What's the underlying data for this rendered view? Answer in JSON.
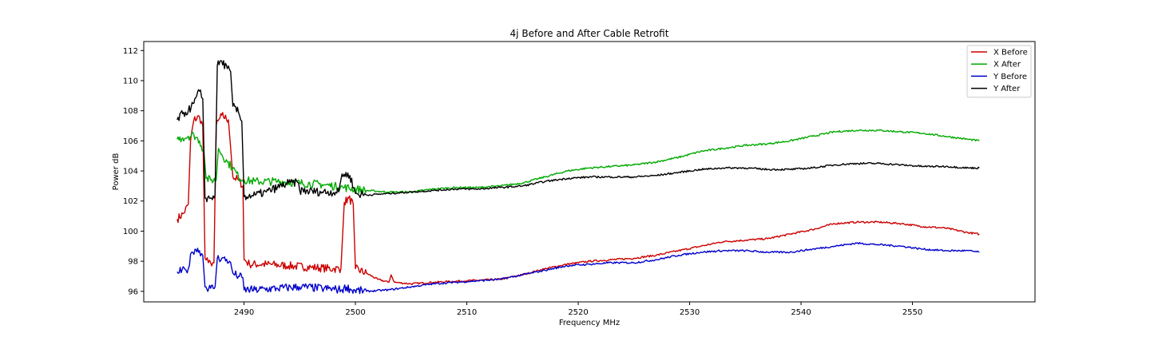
{
  "chart_data": {
    "type": "line",
    "title": "4j Before and After Cable Retrofit",
    "xlabel": "Frequency MHz",
    "ylabel": "Power dB",
    "xlim": [
      2481,
      2561
    ],
    "ylim": [
      95.3,
      112.6
    ],
    "xticks": [
      2490,
      2500,
      2510,
      2520,
      2530,
      2540,
      2550
    ],
    "yticks": [
      96,
      98,
      100,
      102,
      104,
      106,
      108,
      110,
      112
    ],
    "grid": false,
    "legend": "top-right",
    "series": [
      {
        "name": "X Before",
        "color": "#cc0000",
        "points": [
          [
            2484.0,
            100.8
          ],
          [
            2484.6,
            101.2
          ],
          [
            2485.0,
            101.8
          ],
          [
            2485.2,
            106.0
          ],
          [
            2485.5,
            107.4
          ],
          [
            2486.0,
            107.6
          ],
          [
            2486.3,
            107.0
          ],
          [
            2486.5,
            98.2
          ],
          [
            2486.8,
            97.9
          ],
          [
            2487.0,
            97.9
          ],
          [
            2487.3,
            97.9
          ],
          [
            2487.5,
            107.0
          ],
          [
            2488.0,
            107.7
          ],
          [
            2488.6,
            107.4
          ],
          [
            2489.0,
            103.6
          ],
          [
            2489.5,
            103.4
          ],
          [
            2489.9,
            103.0
          ],
          [
            2490.0,
            98.1
          ],
          [
            2490.5,
            97.8
          ],
          [
            2492.0,
            97.8
          ],
          [
            2494.0,
            97.7
          ],
          [
            2496.0,
            97.6
          ],
          [
            2498.0,
            97.5
          ],
          [
            2498.7,
            97.5
          ],
          [
            2499.0,
            101.9
          ],
          [
            2499.4,
            102.2
          ],
          [
            2499.8,
            101.8
          ],
          [
            2500.0,
            97.5
          ],
          [
            2501.0,
            97.2
          ],
          [
            2502.0,
            96.8
          ],
          [
            2503.0,
            96.6
          ],
          [
            2503.2,
            97.1
          ],
          [
            2503.5,
            96.6
          ],
          [
            2505.0,
            96.5
          ],
          [
            2507.0,
            96.6
          ],
          [
            2510.0,
            96.7
          ],
          [
            2513.0,
            96.8
          ],
          [
            2515.0,
            97.1
          ],
          [
            2517.0,
            97.5
          ],
          [
            2519.0,
            97.8
          ],
          [
            2521.0,
            98.0
          ],
          [
            2523.0,
            98.1
          ],
          [
            2525.0,
            98.2
          ],
          [
            2527.0,
            98.4
          ],
          [
            2529.0,
            98.7
          ],
          [
            2531.0,
            99.0
          ],
          [
            2533.0,
            99.3
          ],
          [
            2535.0,
            99.4
          ],
          [
            2537.0,
            99.5
          ],
          [
            2539.0,
            99.8
          ],
          [
            2541.0,
            100.1
          ],
          [
            2543.0,
            100.5
          ],
          [
            2545.0,
            100.6
          ],
          [
            2547.0,
            100.6
          ],
          [
            2549.0,
            100.5
          ],
          [
            2551.0,
            100.3
          ],
          [
            2553.0,
            100.2
          ],
          [
            2555.0,
            99.9
          ],
          [
            2556.0,
            99.8
          ]
        ]
      },
      {
        "name": "X After",
        "color": "#00aa00",
        "points": [
          [
            2484.0,
            106.1
          ],
          [
            2484.5,
            106.2
          ],
          [
            2485.0,
            106.3
          ],
          [
            2485.5,
            106.4
          ],
          [
            2486.0,
            106.0
          ],
          [
            2486.4,
            105.3
          ],
          [
            2486.6,
            103.5
          ],
          [
            2487.0,
            103.4
          ],
          [
            2487.5,
            103.4
          ],
          [
            2487.7,
            105.5
          ],
          [
            2488.0,
            105.1
          ],
          [
            2488.5,
            104.6
          ],
          [
            2489.0,
            104.2
          ],
          [
            2489.5,
            103.6
          ],
          [
            2490.0,
            103.4
          ],
          [
            2491.0,
            103.3
          ],
          [
            2493.0,
            103.3
          ],
          [
            2495.0,
            103.2
          ],
          [
            2497.0,
            103.1
          ],
          [
            2499.0,
            102.9
          ],
          [
            2501.0,
            102.7
          ],
          [
            2503.0,
            102.6
          ],
          [
            2505.0,
            102.6
          ],
          [
            2507.0,
            102.8
          ],
          [
            2509.0,
            102.9
          ],
          [
            2511.0,
            102.9
          ],
          [
            2513.0,
            103.0
          ],
          [
            2515.0,
            103.2
          ],
          [
            2517.0,
            103.6
          ],
          [
            2519.0,
            104.0
          ],
          [
            2521.0,
            104.2
          ],
          [
            2523.0,
            104.3
          ],
          [
            2525.0,
            104.4
          ],
          [
            2527.0,
            104.6
          ],
          [
            2529.0,
            104.9
          ],
          [
            2531.0,
            105.3
          ],
          [
            2533.0,
            105.5
          ],
          [
            2535.0,
            105.7
          ],
          [
            2537.0,
            105.8
          ],
          [
            2539.0,
            106.0
          ],
          [
            2541.0,
            106.3
          ],
          [
            2543.0,
            106.6
          ],
          [
            2545.0,
            106.7
          ],
          [
            2547.0,
            106.7
          ],
          [
            2549.0,
            106.6
          ],
          [
            2551.0,
            106.5
          ],
          [
            2553.0,
            106.3
          ],
          [
            2555.0,
            106.1
          ],
          [
            2556.0,
            106.0
          ]
        ]
      },
      {
        "name": "Y Before",
        "color": "#0000cc",
        "points": [
          [
            2484.0,
            97.3
          ],
          [
            2484.8,
            97.4
          ],
          [
            2485.0,
            97.5
          ],
          [
            2485.3,
            98.6
          ],
          [
            2485.6,
            98.8
          ],
          [
            2486.0,
            98.7
          ],
          [
            2486.3,
            98.4
          ],
          [
            2486.5,
            96.3
          ],
          [
            2487.0,
            96.2
          ],
          [
            2487.4,
            96.3
          ],
          [
            2487.6,
            98.2
          ],
          [
            2488.0,
            98.2
          ],
          [
            2488.7,
            98.0
          ],
          [
            2489.0,
            97.2
          ],
          [
            2489.5,
            97.0
          ],
          [
            2489.9,
            96.9
          ],
          [
            2490.0,
            96.1
          ],
          [
            2491.0,
            96.1
          ],
          [
            2493.0,
            96.2
          ],
          [
            2495.0,
            96.3
          ],
          [
            2497.0,
            96.2
          ],
          [
            2498.8,
            96.1
          ],
          [
            2499.2,
            96.3
          ],
          [
            2499.6,
            96.1
          ],
          [
            2501.0,
            96.0
          ],
          [
            2503.0,
            96.1
          ],
          [
            2505.0,
            96.3
          ],
          [
            2507.0,
            96.5
          ],
          [
            2509.0,
            96.6
          ],
          [
            2511.0,
            96.7
          ],
          [
            2513.0,
            96.8
          ],
          [
            2515.0,
            97.1
          ],
          [
            2517.0,
            97.4
          ],
          [
            2519.0,
            97.7
          ],
          [
            2521.0,
            97.8
          ],
          [
            2523.0,
            97.9
          ],
          [
            2525.0,
            97.9
          ],
          [
            2527.0,
            98.1
          ],
          [
            2529.0,
            98.4
          ],
          [
            2531.0,
            98.6
          ],
          [
            2533.0,
            98.7
          ],
          [
            2535.0,
            98.7
          ],
          [
            2537.0,
            98.6
          ],
          [
            2539.0,
            98.6
          ],
          [
            2541.0,
            98.8
          ],
          [
            2543.0,
            99.0
          ],
          [
            2545.0,
            99.2
          ],
          [
            2547.0,
            99.1
          ],
          [
            2549.0,
            99.0
          ],
          [
            2551.0,
            98.8
          ],
          [
            2553.0,
            98.7
          ],
          [
            2555.0,
            98.7
          ],
          [
            2556.0,
            98.6
          ]
        ]
      },
      {
        "name": "Y After",
        "color": "#000000",
        "points": [
          [
            2484.0,
            107.4
          ],
          [
            2484.5,
            107.8
          ],
          [
            2485.0,
            108.0
          ],
          [
            2485.5,
            108.5
          ],
          [
            2486.0,
            109.3
          ],
          [
            2486.3,
            108.8
          ],
          [
            2486.5,
            102.2
          ],
          [
            2487.0,
            102.2
          ],
          [
            2487.4,
            102.4
          ],
          [
            2487.6,
            111.0
          ],
          [
            2488.0,
            111.3
          ],
          [
            2488.5,
            110.8
          ],
          [
            2488.8,
            110.6
          ],
          [
            2489.0,
            108.3
          ],
          [
            2489.5,
            107.9
          ],
          [
            2489.8,
            107.3
          ],
          [
            2490.0,
            102.3
          ],
          [
            2491.0,
            102.4
          ],
          [
            2492.0,
            102.6
          ],
          [
            2493.0,
            102.9
          ],
          [
            2494.0,
            103.2
          ],
          [
            2494.9,
            103.2
          ],
          [
            2495.0,
            102.7
          ],
          [
            2497.0,
            102.6
          ],
          [
            2498.5,
            102.6
          ],
          [
            2498.8,
            103.8
          ],
          [
            2499.5,
            103.7
          ],
          [
            2500.0,
            102.5
          ],
          [
            2501.0,
            102.4
          ],
          [
            2503.0,
            102.5
          ],
          [
            2505.0,
            102.6
          ],
          [
            2507.0,
            102.7
          ],
          [
            2509.0,
            102.8
          ],
          [
            2511.0,
            102.8
          ],
          [
            2513.0,
            102.9
          ],
          [
            2515.0,
            103.0
          ],
          [
            2517.0,
            103.3
          ],
          [
            2519.0,
            103.5
          ],
          [
            2521.0,
            103.6
          ],
          [
            2523.0,
            103.6
          ],
          [
            2525.0,
            103.6
          ],
          [
            2527.0,
            103.7
          ],
          [
            2529.0,
            103.9
          ],
          [
            2531.0,
            104.1
          ],
          [
            2533.0,
            104.2
          ],
          [
            2535.0,
            104.2
          ],
          [
            2537.0,
            104.1
          ],
          [
            2539.0,
            104.1
          ],
          [
            2541.0,
            104.2
          ],
          [
            2543.0,
            104.4
          ],
          [
            2545.0,
            104.5
          ],
          [
            2547.0,
            104.5
          ],
          [
            2549.0,
            104.4
          ],
          [
            2551.0,
            104.3
          ],
          [
            2553.0,
            104.3
          ],
          [
            2555.0,
            104.2
          ],
          [
            2556.0,
            104.2
          ]
        ]
      }
    ]
  }
}
